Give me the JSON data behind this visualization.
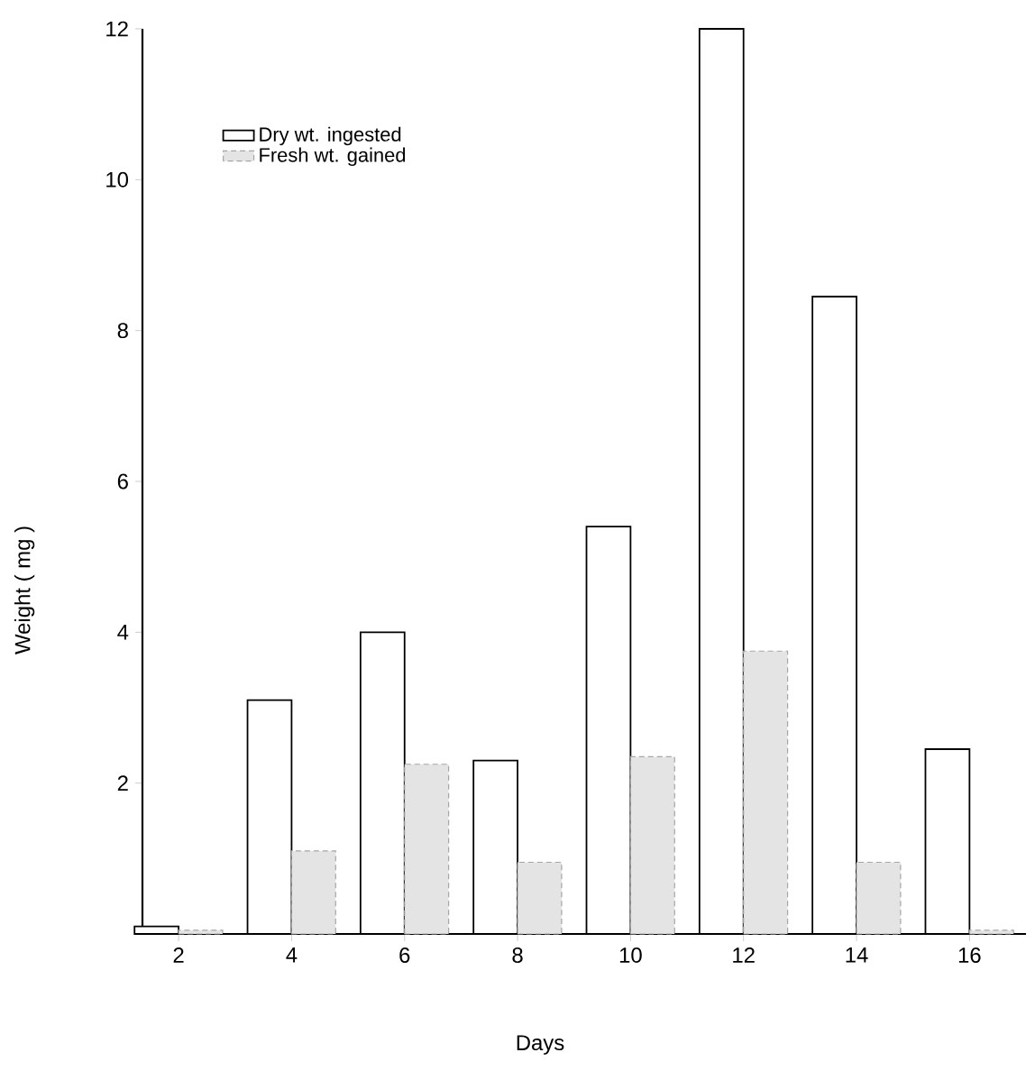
{
  "chart_data": {
    "type": "bar",
    "categories": [
      "2",
      "4",
      "6",
      "8",
      "10",
      "12",
      "14",
      "16"
    ],
    "series": [
      {
        "name": "Dry wt. ingested",
        "color": "#ffffff",
        "values": [
          0.1,
          3.1,
          4.0,
          2.3,
          5.4,
          12.0,
          8.45,
          2.45
        ]
      },
      {
        "name": "Fresh wt. gained",
        "color": "#e4e4e4",
        "values": [
          0.05,
          1.1,
          2.25,
          0.95,
          2.35,
          3.75,
          0.95,
          0.05
        ]
      }
    ],
    "xlabel": "Days",
    "ylabel": "Weight ( mg )",
    "ylim": [
      0,
      12
    ],
    "yticks": [
      2,
      4,
      6,
      8,
      10,
      12
    ],
    "legend": "top left"
  }
}
